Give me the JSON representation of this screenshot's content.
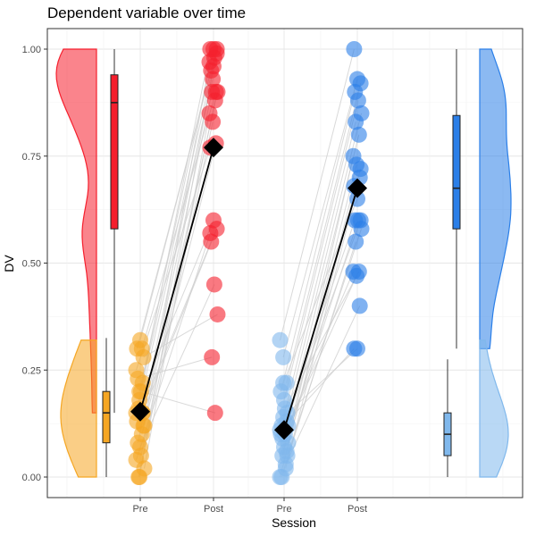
{
  "chart_data": {
    "type": "raincloud",
    "title": "Dependent variable over time",
    "xlabel": "Session",
    "ylabel": "DV",
    "ylim": [
      0,
      1
    ],
    "y_ticks": [
      "0.00",
      "0.25",
      "0.50",
      "0.75",
      "1.00"
    ],
    "x_tick_labels": [
      "Pre",
      "Post",
      "Pre",
      "Post"
    ],
    "grid": true,
    "legend": "none",
    "colors": {
      "group1_pre": "#f5a623",
      "group1_post": "#f51f2d",
      "group2_pre": "#80b8ec",
      "group2_post": "#2b7fe8",
      "mean_marker": "#000000",
      "pair_line": "#cfcfcf"
    },
    "groups": [
      {
        "pre": [
          0.15,
          0.2,
          0.22,
          0.3,
          0.32,
          0.12,
          0.08,
          0.05,
          0.02,
          0.0,
          0.1,
          0.25,
          0.18,
          0.15,
          0.13,
          0.07,
          0.28,
          0.23,
          0.2,
          0.12,
          0.16,
          0.3,
          0.04,
          0.0,
          0.15
        ],
        "post": [
          1.0,
          1.0,
          1.0,
          0.95,
          0.98,
          0.9,
          0.9,
          0.88,
          0.85,
          0.83,
          0.78,
          0.77,
          0.6,
          0.58,
          0.55,
          0.45,
          0.38,
          0.28,
          0.15,
          0.97,
          0.93,
          0.9,
          0.57,
          0.96,
          0.99
        ],
        "mean_pre": 0.153,
        "mean_post": 0.77,
        "box_pre": {
          "min": 0.0,
          "q1": 0.08,
          "median": 0.15,
          "q3": 0.2,
          "max": 0.325
        },
        "box_post": {
          "min": 0.15,
          "q1": 0.58,
          "median": 0.875,
          "q3": 0.94,
          "max": 1.0
        }
      },
      {
        "pre": [
          0.32,
          0.28,
          0.22,
          0.2,
          0.18,
          0.15,
          0.12,
          0.1,
          0.08,
          0.05,
          0.02,
          0.0,
          0.22,
          0.13,
          0.1,
          0.07,
          0.05,
          0.0,
          0.16,
          0.12,
          0.09,
          0.03,
          0.11,
          0.14,
          0.06
        ],
        "post": [
          1.0,
          0.93,
          0.92,
          0.9,
          0.88,
          0.85,
          0.83,
          0.8,
          0.75,
          0.73,
          0.7,
          0.68,
          0.65,
          0.6,
          0.6,
          0.6,
          0.58,
          0.55,
          0.48,
          0.48,
          0.47,
          0.4,
          0.3,
          0.3,
          0.72
        ],
        "mean_pre": 0.11,
        "mean_post": 0.675,
        "box_pre": {
          "min": 0.0,
          "q1": 0.05,
          "median": 0.1,
          "q3": 0.15,
          "max": 0.275
        },
        "box_post": {
          "min": 0.3,
          "q1": 0.58,
          "median": 0.675,
          "q3": 0.845,
          "max": 1.0
        }
      }
    ]
  }
}
